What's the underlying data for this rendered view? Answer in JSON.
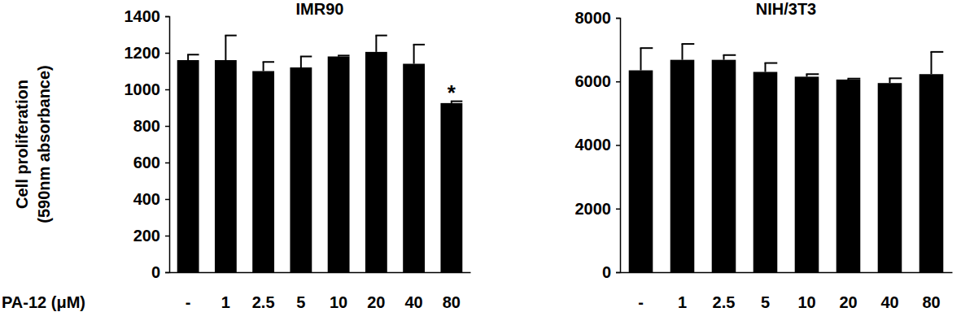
{
  "chart_data": [
    {
      "type": "bar",
      "title": "IMR90",
      "ylabel": [
        "Cell proliferation",
        "(590nm absorbance)"
      ],
      "xlabel": "PA-12 (μM)",
      "categories": [
        "-",
        "1",
        "2.5",
        "5",
        "10",
        "20",
        "40",
        "80"
      ],
      "values": [
        1160,
        1160,
        1100,
        1120,
        1180,
        1205,
        1140,
        925
      ],
      "errors": [
        30,
        135,
        50,
        60,
        5,
        90,
        105,
        10
      ],
      "color": "#000000",
      "ylim": [
        0,
        1400
      ],
      "yticks": [
        0,
        200,
        400,
        600,
        800,
        1000,
        1200,
        1400
      ],
      "annotations": [
        {
          "category": "80",
          "text": "*"
        }
      ]
    },
    {
      "type": "bar",
      "title": "NIH/3T3",
      "categories": [
        "-",
        "1",
        "2.5",
        "5",
        "10",
        "20",
        "40",
        "80"
      ],
      "values": [
        6350,
        6680,
        6680,
        6300,
        6150,
        6060,
        5950,
        6230
      ],
      "errors": [
        700,
        500,
        150,
        280,
        80,
        30,
        150,
        700
      ],
      "color": "#000000",
      "ylim": [
        0,
        8000
      ],
      "yticks": [
        0,
        2000,
        4000,
        6000,
        8000
      ]
    }
  ]
}
